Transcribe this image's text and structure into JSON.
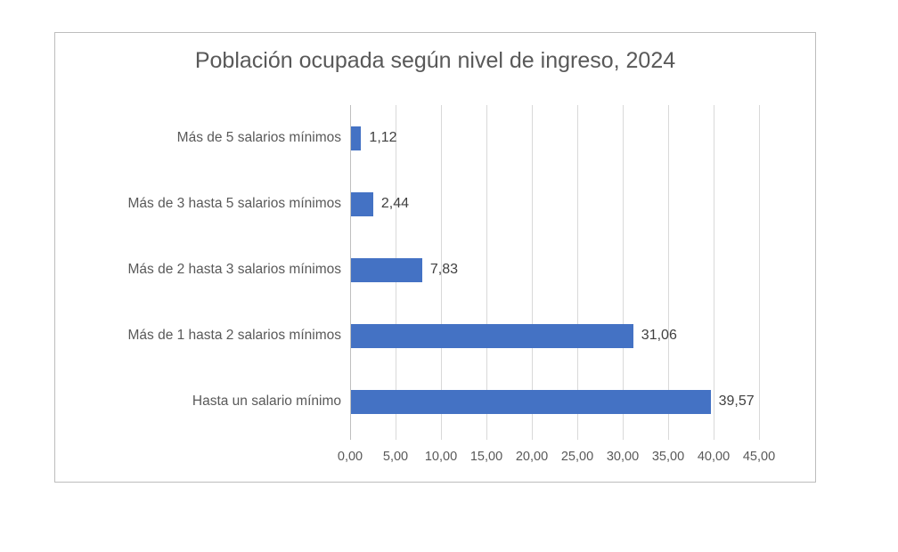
{
  "chart_data": {
    "type": "bar",
    "orientation": "horizontal",
    "title": "Población ocupada según nivel de ingreso, 2024",
    "categories": [
      "Más de 5 salarios mínimos",
      "Más de 3 hasta 5 salarios mínimos",
      "Más de 2 hasta 3 salarios mínimos",
      "Más de 1 hasta 2 salarios mínimos",
      "Hasta un salario mínimo"
    ],
    "values": [
      1.12,
      2.44,
      7.83,
      31.06,
      39.57
    ],
    "value_labels": [
      "1,12",
      "2,44",
      "7,83",
      "31,06",
      "39,57"
    ],
    "x_tick_labels": [
      "0,00",
      "5,00",
      "10,00",
      "15,00",
      "20,00",
      "25,00",
      "30,00",
      "35,00",
      "40,00",
      "45,00"
    ],
    "xlim": [
      0,
      45
    ],
    "x_tick_step": 5,
    "grid": true,
    "legend": "none",
    "colors": {
      "bar": "#4472C4",
      "gridline": "#D9D9D9",
      "axis_line": "#BFBFBF",
      "title": "#595959",
      "category_label": "#595959",
      "value_label": "#404040",
      "tick_label": "#595959",
      "frame_border": "#BDBDBD"
    }
  }
}
